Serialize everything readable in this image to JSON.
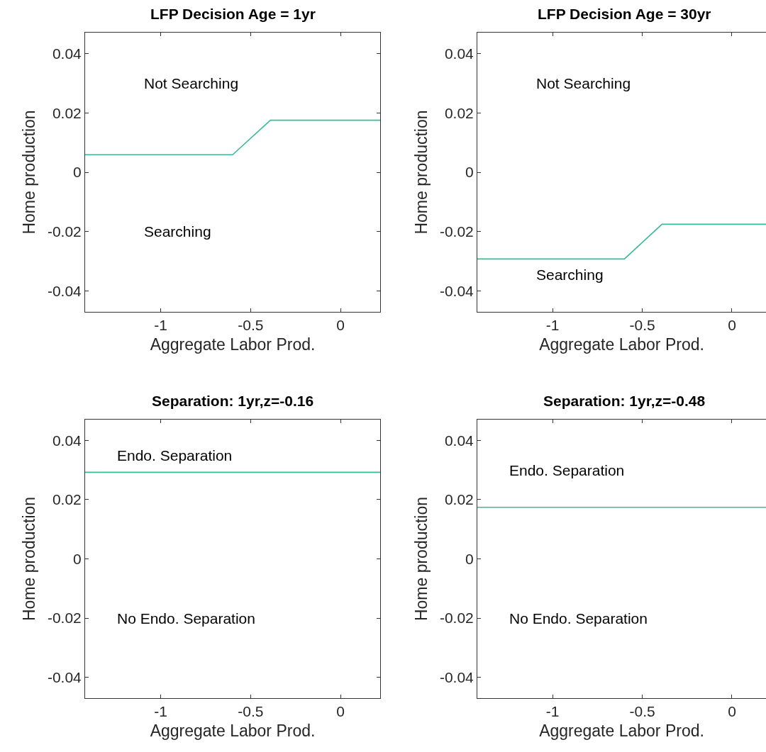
{
  "chart_data": [
    {
      "type": "line",
      "title": "LFP Decision Age = 1yr",
      "xlabel": "Aggregate Labor Prod.",
      "ylabel": "Home production",
      "x": [
        -1.42,
        -0.6,
        -0.39,
        0.22
      ],
      "series": [
        {
          "color": "#3cbb9b",
          "values": [
            0.0059,
            0.0059,
            0.0175,
            0.0175
          ]
        }
      ],
      "xlim": [
        -1.42,
        0.22
      ],
      "ylim": [
        -0.047,
        0.047
      ],
      "xticks": [
        -1,
        -0.5,
        0
      ],
      "yticks": [
        -0.04,
        -0.02,
        0,
        0.02,
        0.04
      ],
      "annotations": [
        "Not Searching",
        "Searching"
      ]
    },
    {
      "type": "line",
      "title": "LFP Decision Age = 30yr",
      "xlabel": "Aggregate Labor Prod.",
      "ylabel": "Home production",
      "x": [
        -1.42,
        -0.6,
        -0.39,
        0.19
      ],
      "series": [
        {
          "color": "#3cbb9b",
          "values": [
            -0.0292,
            -0.0292,
            -0.0175,
            -0.0175
          ]
        }
      ],
      "xlim": [
        -1.42,
        0.19
      ],
      "ylim": [
        -0.047,
        0.047
      ],
      "xticks": [
        -1,
        -0.5,
        0
      ],
      "yticks": [
        -0.04,
        -0.02,
        0,
        0.02,
        0.04
      ],
      "annotations": [
        "Not Searching",
        "Searching"
      ]
    },
    {
      "type": "line",
      "title": "Separation: 1yr,z=-0.16",
      "xlabel": "Aggregate Labor Prod.",
      "ylabel": "Home production",
      "x": [
        -1.42,
        0.22
      ],
      "series": [
        {
          "color": "#3cbb9b",
          "values": [
            0.0292,
            0.0292
          ]
        }
      ],
      "xlim": [
        -1.42,
        0.22
      ],
      "ylim": [
        -0.047,
        0.047
      ],
      "xticks": [
        -1,
        -0.5,
        0
      ],
      "yticks": [
        -0.04,
        -0.02,
        0,
        0.02,
        0.04
      ],
      "annotations": [
        "Endo. Separation",
        "No Endo. Separation"
      ]
    },
    {
      "type": "line",
      "title": "Separation: 1yr,z=-0.48",
      "xlabel": "Aggregate Labor Prod.",
      "ylabel": "Home production",
      "x": [
        -1.42,
        0.19
      ],
      "series": [
        {
          "color": "#3cbb9b",
          "values": [
            0.0174,
            0.0174
          ]
        }
      ],
      "xlim": [
        -1.42,
        0.19
      ],
      "ylim": [
        -0.047,
        0.047
      ],
      "xticks": [
        -1,
        -0.5,
        0
      ],
      "yticks": [
        -0.04,
        -0.02,
        0,
        0.02,
        0.04
      ],
      "annotations": [
        "Endo. Separation",
        "No Endo. Separation"
      ]
    }
  ]
}
